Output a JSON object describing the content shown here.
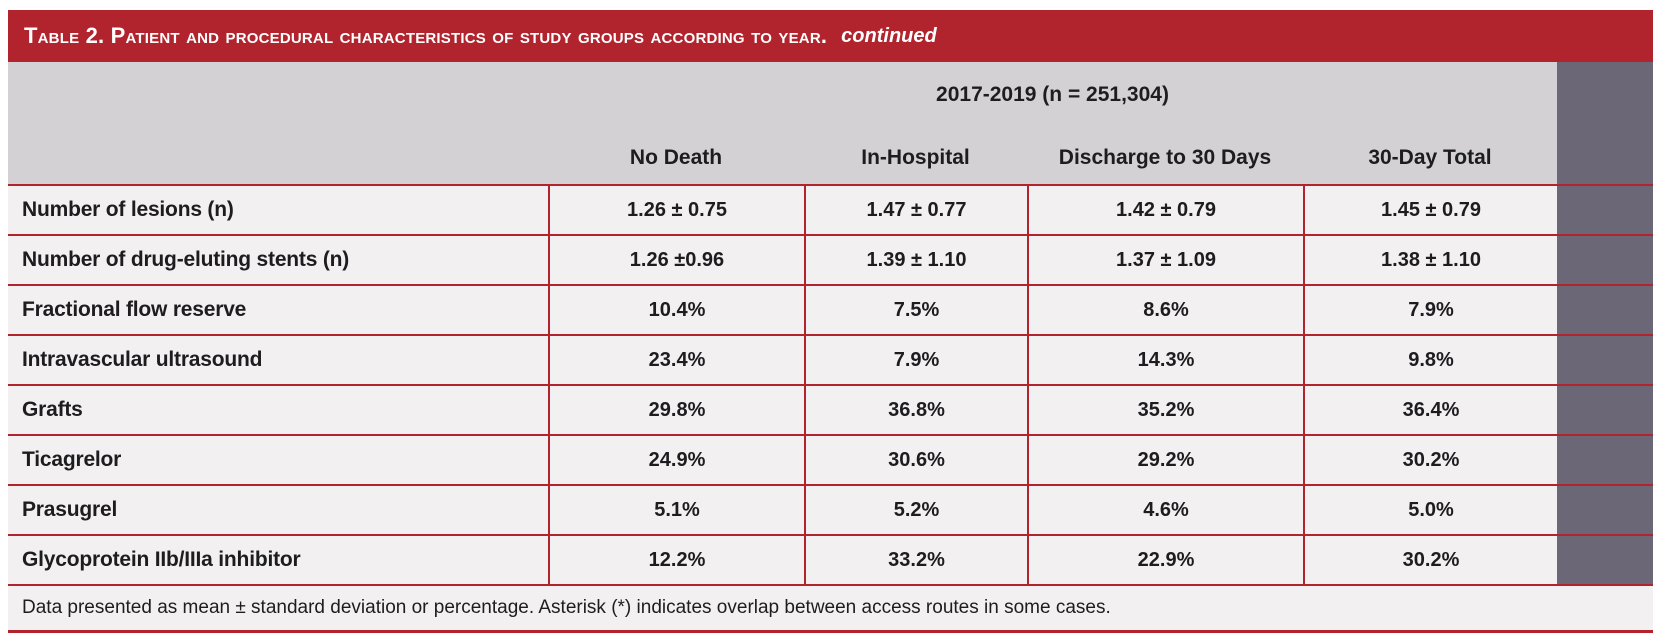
{
  "colors": {
    "red": "#B1232D",
    "slate": "#6B6777",
    "gray": "#D3D1D3",
    "rowbg": "#F2F0F1",
    "ink": "#1D1D1F"
  },
  "table": {
    "title": "Table 2. Patient and procedural characteristics of study groups according to year.",
    "title_suffix": "continued",
    "group_header": "2017-2019 (n = 251,304)",
    "columns": [
      "No Death",
      "In-Hospital",
      "Discharge to 30 Days",
      "30-Day Total"
    ],
    "rows": [
      {
        "label": "Number of lesions (n)",
        "values": [
          "1.26 ± 0.75",
          "1.47 ± 0.77",
          "1.42 ± 0.79",
          "1.45 ± 0.79"
        ]
      },
      {
        "label": "Number of drug-eluting stents (n)",
        "values": [
          "1.26 ±0.96",
          "1.39 ± 1.10",
          "1.37 ± 1.09",
          "1.38 ± 1.10"
        ]
      },
      {
        "label": "Fractional flow reserve",
        "values": [
          "10.4%",
          "7.5%",
          "8.6%",
          "7.9%"
        ]
      },
      {
        "label": "Intravascular ultrasound",
        "values": [
          "23.4%",
          "7.9%",
          "14.3%",
          "9.8%"
        ]
      },
      {
        "label": "Grafts",
        "values": [
          "29.8%",
          "36.8%",
          "35.2%",
          "36.4%"
        ]
      },
      {
        "label": "Ticagrelor",
        "values": [
          "24.9%",
          "30.6%",
          "29.2%",
          "30.2%"
        ]
      },
      {
        "label": "Prasugrel",
        "values": [
          "5.1%",
          "5.2%",
          "4.6%",
          "5.0%"
        ]
      },
      {
        "label": "Glycoprotein IIb/IIIa inhibitor",
        "values": [
          "12.2%",
          "33.2%",
          "22.9%",
          "30.2%"
        ]
      }
    ],
    "footnote": "Data presented as mean ± standard deviation or percentage. Asterisk (*) indicates overlap between access routes in some cases."
  }
}
